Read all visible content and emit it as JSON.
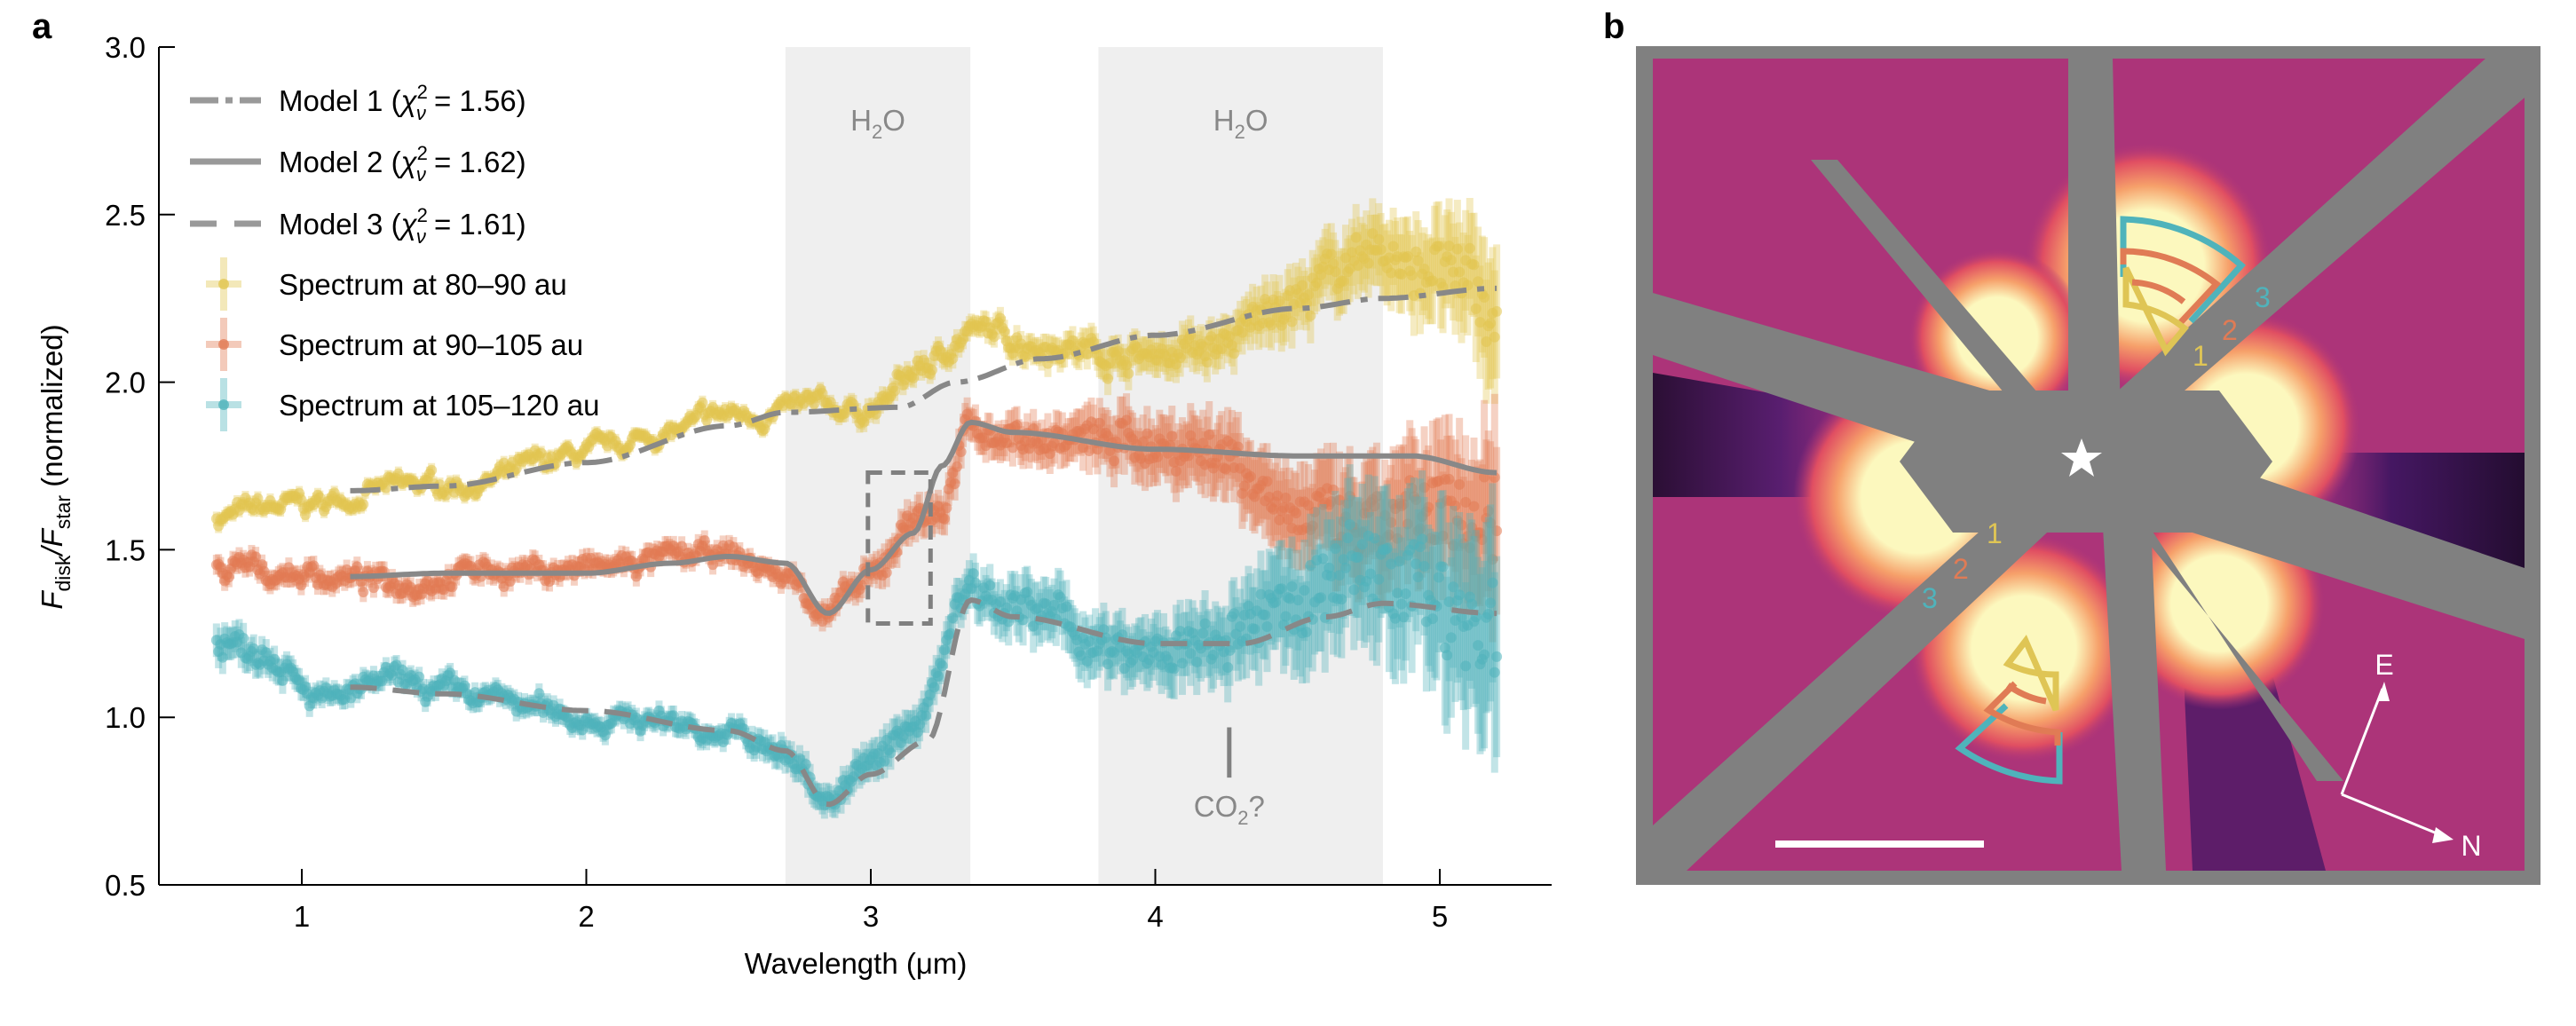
{
  "panels": {
    "a_label": "a",
    "b_label": "b"
  },
  "chart_data": {
    "type": "scatter",
    "xlabel": "Wavelength (μm)",
    "ylabel": {
      "main": "F",
      "sub1": "disk",
      "slash": "/F",
      "sub2": "star",
      "suffix": " (normalized)"
    },
    "xlim": [
      0.5,
      5.4
    ],
    "ylim": [
      0.5,
      3.0
    ],
    "xticks": [
      1,
      2,
      3,
      4,
      5
    ],
    "xtick_labels": [
      "1",
      "2",
      "3",
      "4",
      "5"
    ],
    "yticks": [
      0.5,
      1.0,
      1.5,
      2.0,
      2.5,
      3.0
    ],
    "ytick_labels": [
      "0.5",
      "1.0",
      "1.5",
      "2.0",
      "2.5",
      "3.0"
    ],
    "grid": false,
    "legend_position": "top-left",
    "shaded_bands": [
      {
        "label_main": "H",
        "label_sub": "2",
        "label_end": "O",
        "x_range": [
          2.7,
          3.35
        ]
      },
      {
        "label_main": "H",
        "label_sub": "2",
        "label_end": "O",
        "x_range": [
          3.8,
          4.8
        ]
      }
    ],
    "annotations": {
      "co2": {
        "label_main": "CO",
        "label_sub": "2",
        "label_end": "?",
        "x": 4.26,
        "y_range": [
          0.82,
          0.97
        ]
      },
      "highlight_box": {
        "x_range": [
          2.99,
          3.21
        ],
        "y_range": [
          1.28,
          1.73
        ]
      }
    },
    "models": [
      {
        "name": "Model 1",
        "legend": "Model 1 (",
        "chi": "χ",
        "sup": "2",
        "sub": "ν",
        "value": " = 1.56)",
        "style": "dashdot",
        "x": [
          1.17,
          1.5,
          2.0,
          2.5,
          2.7,
          3.1,
          3.3,
          3.6,
          4.0,
          4.5,
          4.8,
          5.2
        ],
        "y": [
          1.676,
          1.69,
          1.76,
          1.87,
          1.91,
          1.925,
          2.0,
          2.07,
          2.14,
          2.22,
          2.25,
          2.28
        ]
      },
      {
        "name": "Model 2",
        "legend": "Model 2 (",
        "chi": "χ",
        "sup": "2",
        "sub": "ν",
        "value": " = 1.62)",
        "style": "solid",
        "x": [
          1.17,
          1.5,
          2.0,
          2.3,
          2.5,
          2.7,
          2.85,
          3.0,
          3.15,
          3.25,
          3.35,
          3.5,
          4.0,
          4.5,
          4.9,
          5.2
        ],
        "y": [
          1.42,
          1.43,
          1.43,
          1.46,
          1.48,
          1.46,
          1.31,
          1.44,
          1.55,
          1.75,
          1.88,
          1.85,
          1.8,
          1.78,
          1.78,
          1.73
        ]
      },
      {
        "name": "Model 3",
        "legend": "Model 3 (",
        "chi": "χ",
        "sup": "2",
        "sub": "ν",
        "value": " = 1.61)",
        "style": "dashed",
        "x": [
          1.17,
          1.5,
          2.0,
          2.5,
          2.7,
          2.85,
          3.0,
          3.2,
          3.35,
          3.5,
          4.0,
          4.3,
          4.6,
          4.8,
          5.2
        ],
        "y": [
          1.09,
          1.07,
          1.02,
          0.96,
          0.9,
          0.74,
          0.83,
          0.93,
          1.35,
          1.3,
          1.22,
          1.22,
          1.3,
          1.34,
          1.31
        ]
      }
    ],
    "series": [
      {
        "name": "Spectrum at 80–90 au",
        "color": "#e2c550",
        "x": [
          0.7,
          1.0,
          1.3,
          1.6,
          2.0,
          2.3,
          2.5,
          2.8,
          3.0,
          3.2,
          3.35,
          3.6,
          3.9,
          4.2,
          4.5,
          4.7,
          4.9,
          5.1,
          5.2
        ],
        "y": [
          1.6,
          1.63,
          1.68,
          1.7,
          1.78,
          1.85,
          1.9,
          1.92,
          1.92,
          2.05,
          2.15,
          2.12,
          2.08,
          2.1,
          2.25,
          2.37,
          2.35,
          2.3,
          2.2
        ],
        "err": [
          0.02,
          0.02,
          0.02,
          0.02,
          0.02,
          0.02,
          0.02,
          0.02,
          0.03,
          0.03,
          0.03,
          0.04,
          0.05,
          0.06,
          0.08,
          0.1,
          0.12,
          0.15,
          0.2
        ]
      },
      {
        "name": "Spectrum at 90–105 au",
        "color": "#e17a53",
        "x": [
          0.7,
          1.0,
          1.3,
          1.6,
          2.0,
          2.3,
          2.5,
          2.7,
          2.85,
          3.0,
          3.15,
          3.25,
          3.35,
          3.6,
          3.9,
          4.2,
          4.5,
          4.7,
          4.9,
          5.1,
          5.2
        ],
        "y": [
          1.44,
          1.43,
          1.4,
          1.44,
          1.44,
          1.47,
          1.48,
          1.42,
          1.32,
          1.4,
          1.6,
          1.62,
          1.86,
          1.83,
          1.82,
          1.8,
          1.62,
          1.55,
          1.58,
          1.62,
          1.6
        ],
        "err": [
          0.03,
          0.03,
          0.03,
          0.03,
          0.03,
          0.03,
          0.03,
          0.03,
          0.03,
          0.04,
          0.05,
          0.05,
          0.05,
          0.06,
          0.08,
          0.1,
          0.12,
          0.15,
          0.18,
          0.2,
          0.25
        ]
      },
      {
        "name": "Spectrum at 105–120 au",
        "color": "#4fb3bb",
        "x": [
          0.7,
          0.9,
          1.1,
          1.3,
          1.6,
          2.0,
          2.3,
          2.5,
          2.7,
          2.85,
          3.0,
          3.15,
          3.35,
          3.6,
          3.9,
          4.2,
          4.5,
          4.7,
          4.9,
          5.1,
          5.2
        ],
        "y": [
          1.22,
          1.2,
          1.05,
          1.1,
          1.06,
          1.0,
          0.99,
          0.95,
          0.88,
          0.77,
          0.85,
          0.98,
          1.4,
          1.3,
          1.18,
          1.2,
          1.35,
          1.45,
          1.4,
          1.3,
          1.25
        ],
        "err": [
          0.05,
          0.04,
          0.03,
          0.03,
          0.03,
          0.03,
          0.03,
          0.03,
          0.04,
          0.04,
          0.05,
          0.05,
          0.06,
          0.08,
          0.08,
          0.1,
          0.15,
          0.18,
          0.2,
          0.25,
          0.3
        ]
      }
    ]
  },
  "image_panel": {
    "colors": {
      "frame": "#808080",
      "magenta": "#ac3479",
      "purple": "#7a2482",
      "dark": "#1a0a35",
      "bright": "#fcf8be",
      "orange": "#f08a5d",
      "red": "#e24e62",
      "teal": "#4fb3bb",
      "coral": "#e07b55",
      "gold": "#dfc555",
      "white": "#ffffff"
    },
    "ring_labels_upper": [
      "1",
      "2",
      "3"
    ],
    "ring_labels_lower": [
      "1",
      "2",
      "3"
    ],
    "compass": {
      "east": "E",
      "north": "N"
    },
    "star_icon": "star-icon"
  }
}
